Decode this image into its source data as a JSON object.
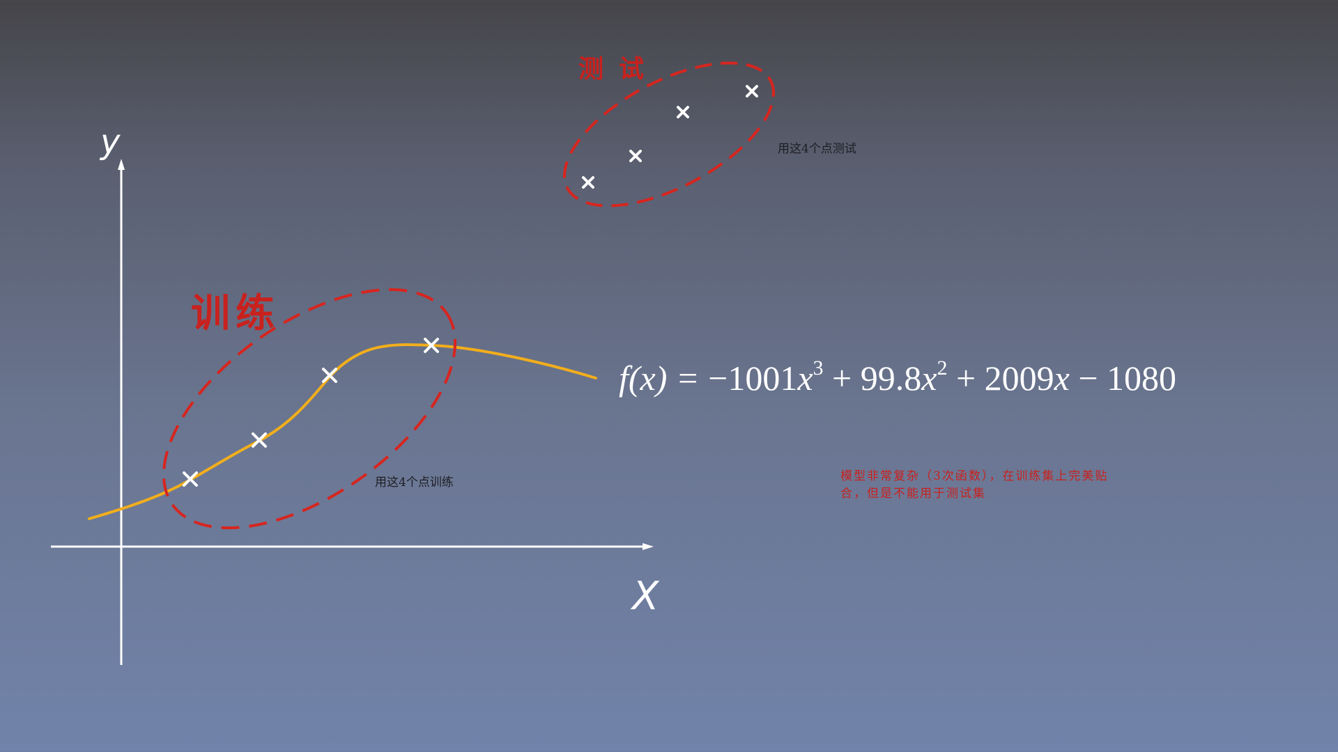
{
  "labels": {
    "train": "训练",
    "test": "测试",
    "train_caption": "用这4个点训练",
    "test_caption": "用这4个点测试",
    "axis_x": "X",
    "axis_y": "y"
  },
  "formula": {
    "lhs": "f(x) = ",
    "t1_coef": "−1001",
    "t1_exp": "3",
    "t2_coef": " + 99.8",
    "t2_exp": "2",
    "t3": " + 2009",
    "t4": " − 1080",
    "var": "x"
  },
  "note": "模型非常复杂（3次函数），在训练集上完美贴合，但是不能用于测试集",
  "colors": {
    "curve": "#f2ae1c",
    "ellipse": "#d7251f",
    "marker": "#ffffff",
    "label_red": "#c9211e",
    "axis": "#ffffff"
  },
  "icons": {
    "point": "cross-marker-icon"
  },
  "training_point_count": 4,
  "test_point_count": 4
}
